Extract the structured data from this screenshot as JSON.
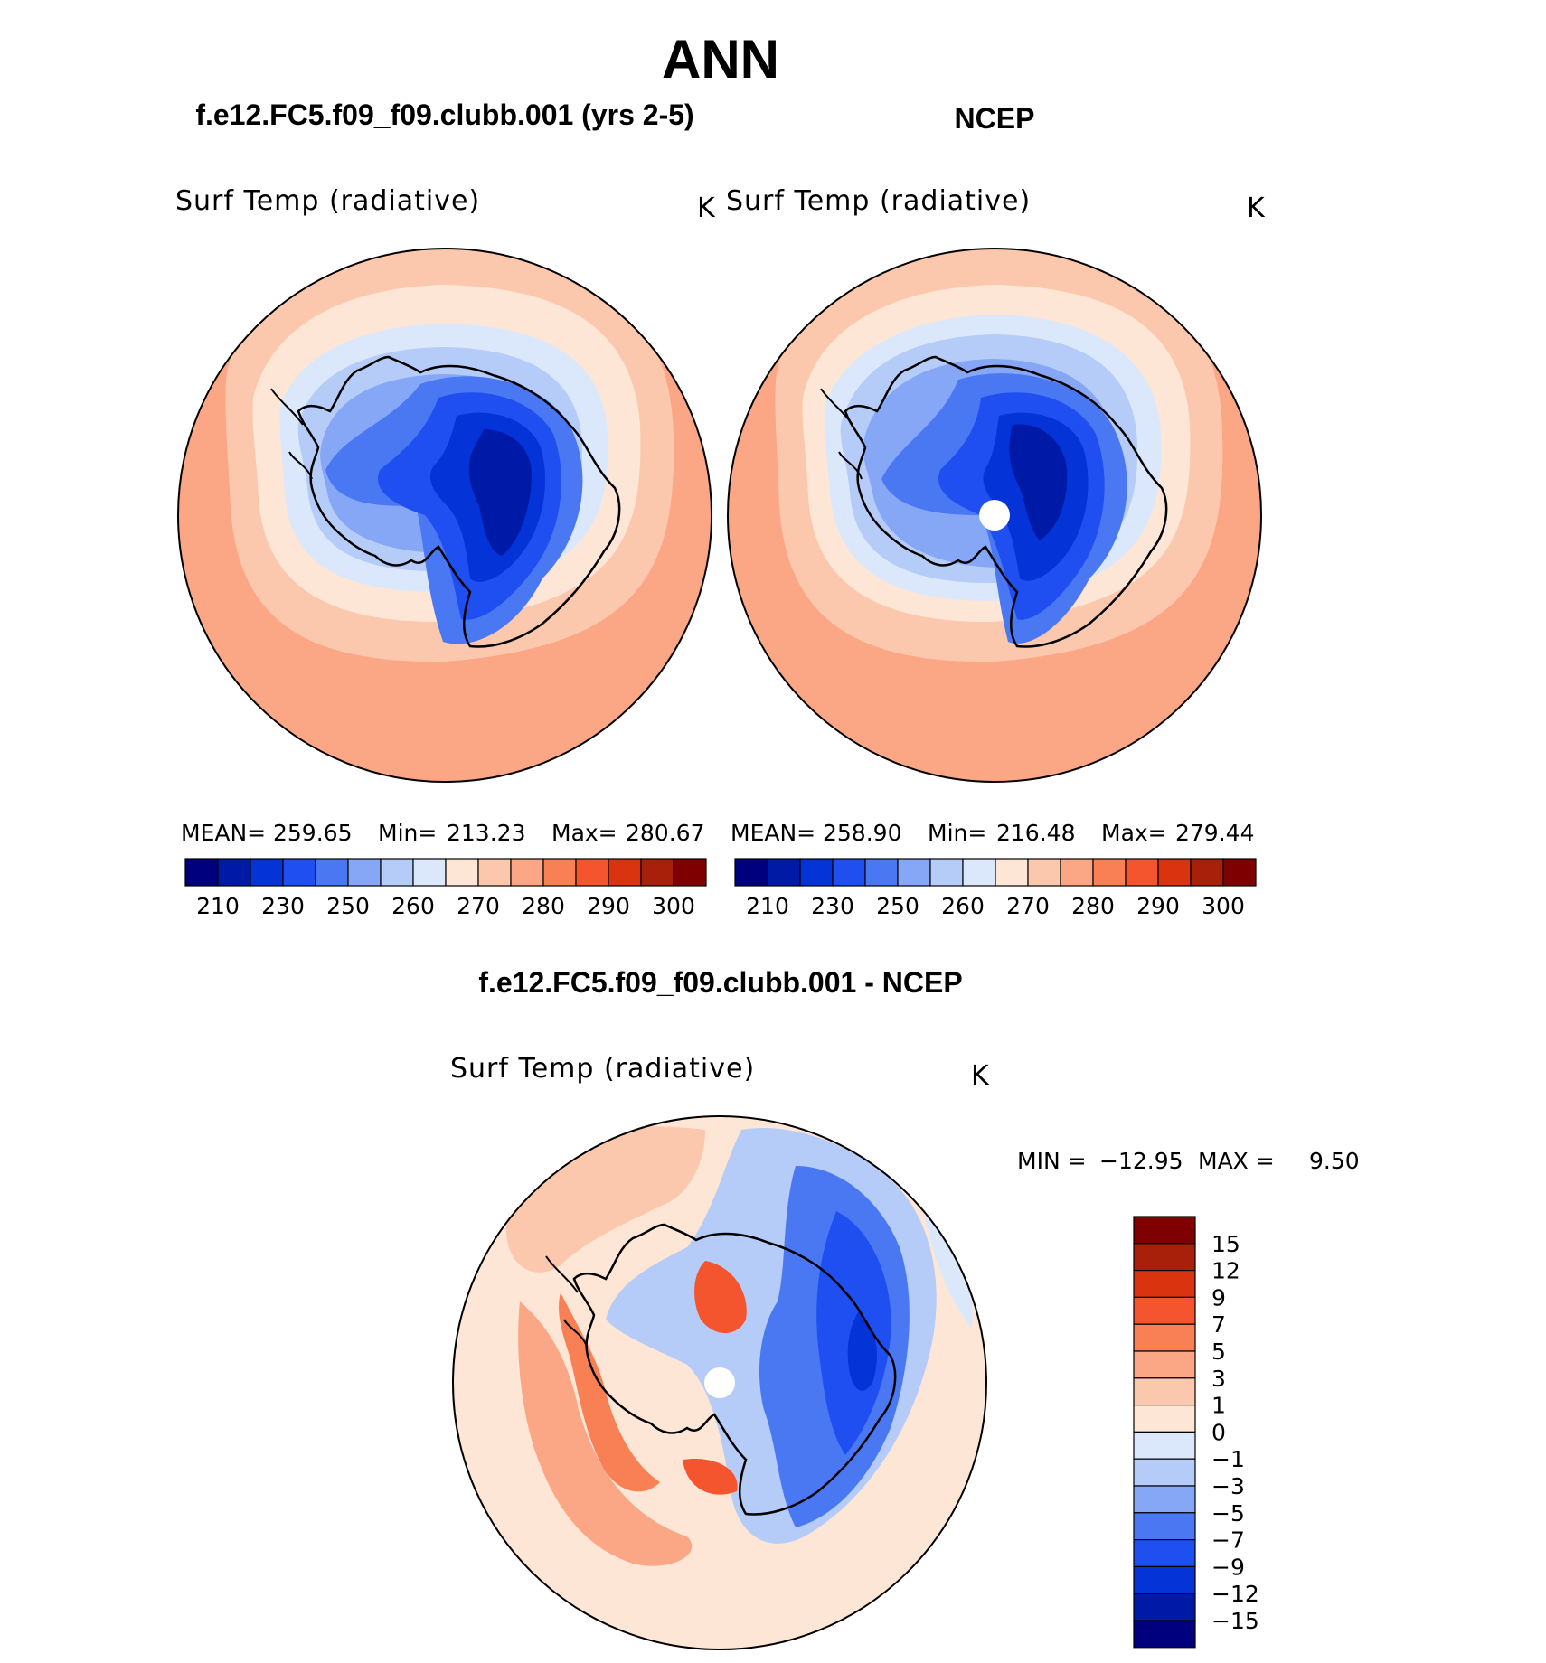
{
  "title": "ANN",
  "chart_data": [
    {
      "type": "heatmap",
      "subtitle": "f.e12.FC5.f09_f09.clubb.001 (yrs 2-5)",
      "variable": "Surf Temp (radiative)",
      "units": "K",
      "stats": {
        "mean_label": "MEAN=",
        "mean": "259.65",
        "min_label": "Min=",
        "min": "213.23",
        "max_label": "Max=",
        "max": "280.67"
      },
      "colorbar_ticks": [
        "210",
        "230",
        "250",
        "260",
        "270",
        "280",
        "290",
        "300"
      ],
      "colorbar_colors": [
        "#00007f",
        "#001aa8",
        "#0433d8",
        "#1f4ff0",
        "#4a78f2",
        "#86a6f6",
        "#b5ccf8",
        "#dbe8fb",
        "#fde6d6",
        "#fcc8ad",
        "#fba684",
        "#f98055",
        "#f4552f",
        "#d9340f",
        "#a9200a",
        "#7f0000"
      ]
    },
    {
      "type": "heatmap",
      "subtitle": "NCEP",
      "variable": "Surf Temp (radiative)",
      "units": "K",
      "stats": {
        "mean_label": "MEAN=",
        "mean": "258.90",
        "min_label": "Min=",
        "min": "216.48",
        "max_label": "Max=",
        "max": "279.44"
      },
      "colorbar_ticks": [
        "210",
        "230",
        "250",
        "260",
        "270",
        "280",
        "290",
        "300"
      ],
      "colorbar_colors": [
        "#00007f",
        "#001aa8",
        "#0433d8",
        "#1f4ff0",
        "#4a78f2",
        "#86a6f6",
        "#b5ccf8",
        "#dbe8fb",
        "#fde6d6",
        "#fcc8ad",
        "#fba684",
        "#f98055",
        "#f4552f",
        "#d9340f",
        "#a9200a",
        "#7f0000"
      ]
    },
    {
      "type": "heatmap",
      "subtitle": "f.e12.FC5.f09_f09.clubb.001 - NCEP",
      "variable": "Surf Temp (radiative)",
      "units": "K",
      "stats": {
        "min_label": "MIN =",
        "min": "−12.95",
        "max_label": "MAX =",
        "max": "9.50"
      },
      "colorbar_ticks": [
        "15",
        "12",
        "9",
        "7",
        "5",
        "3",
        "1",
        "0",
        "−1",
        "−3",
        "−5",
        "−7",
        "−9",
        "−12",
        "−15"
      ],
      "colorbar_colors": [
        "#7f0000",
        "#a9200a",
        "#d9340f",
        "#f4552f",
        "#f98055",
        "#fba684",
        "#fcc8ad",
        "#fde6d6",
        "#dbe8fb",
        "#b5ccf8",
        "#86a6f6",
        "#4a78f2",
        "#1f4ff0",
        "#0433d8",
        "#001aa8",
        "#00007f"
      ]
    }
  ]
}
